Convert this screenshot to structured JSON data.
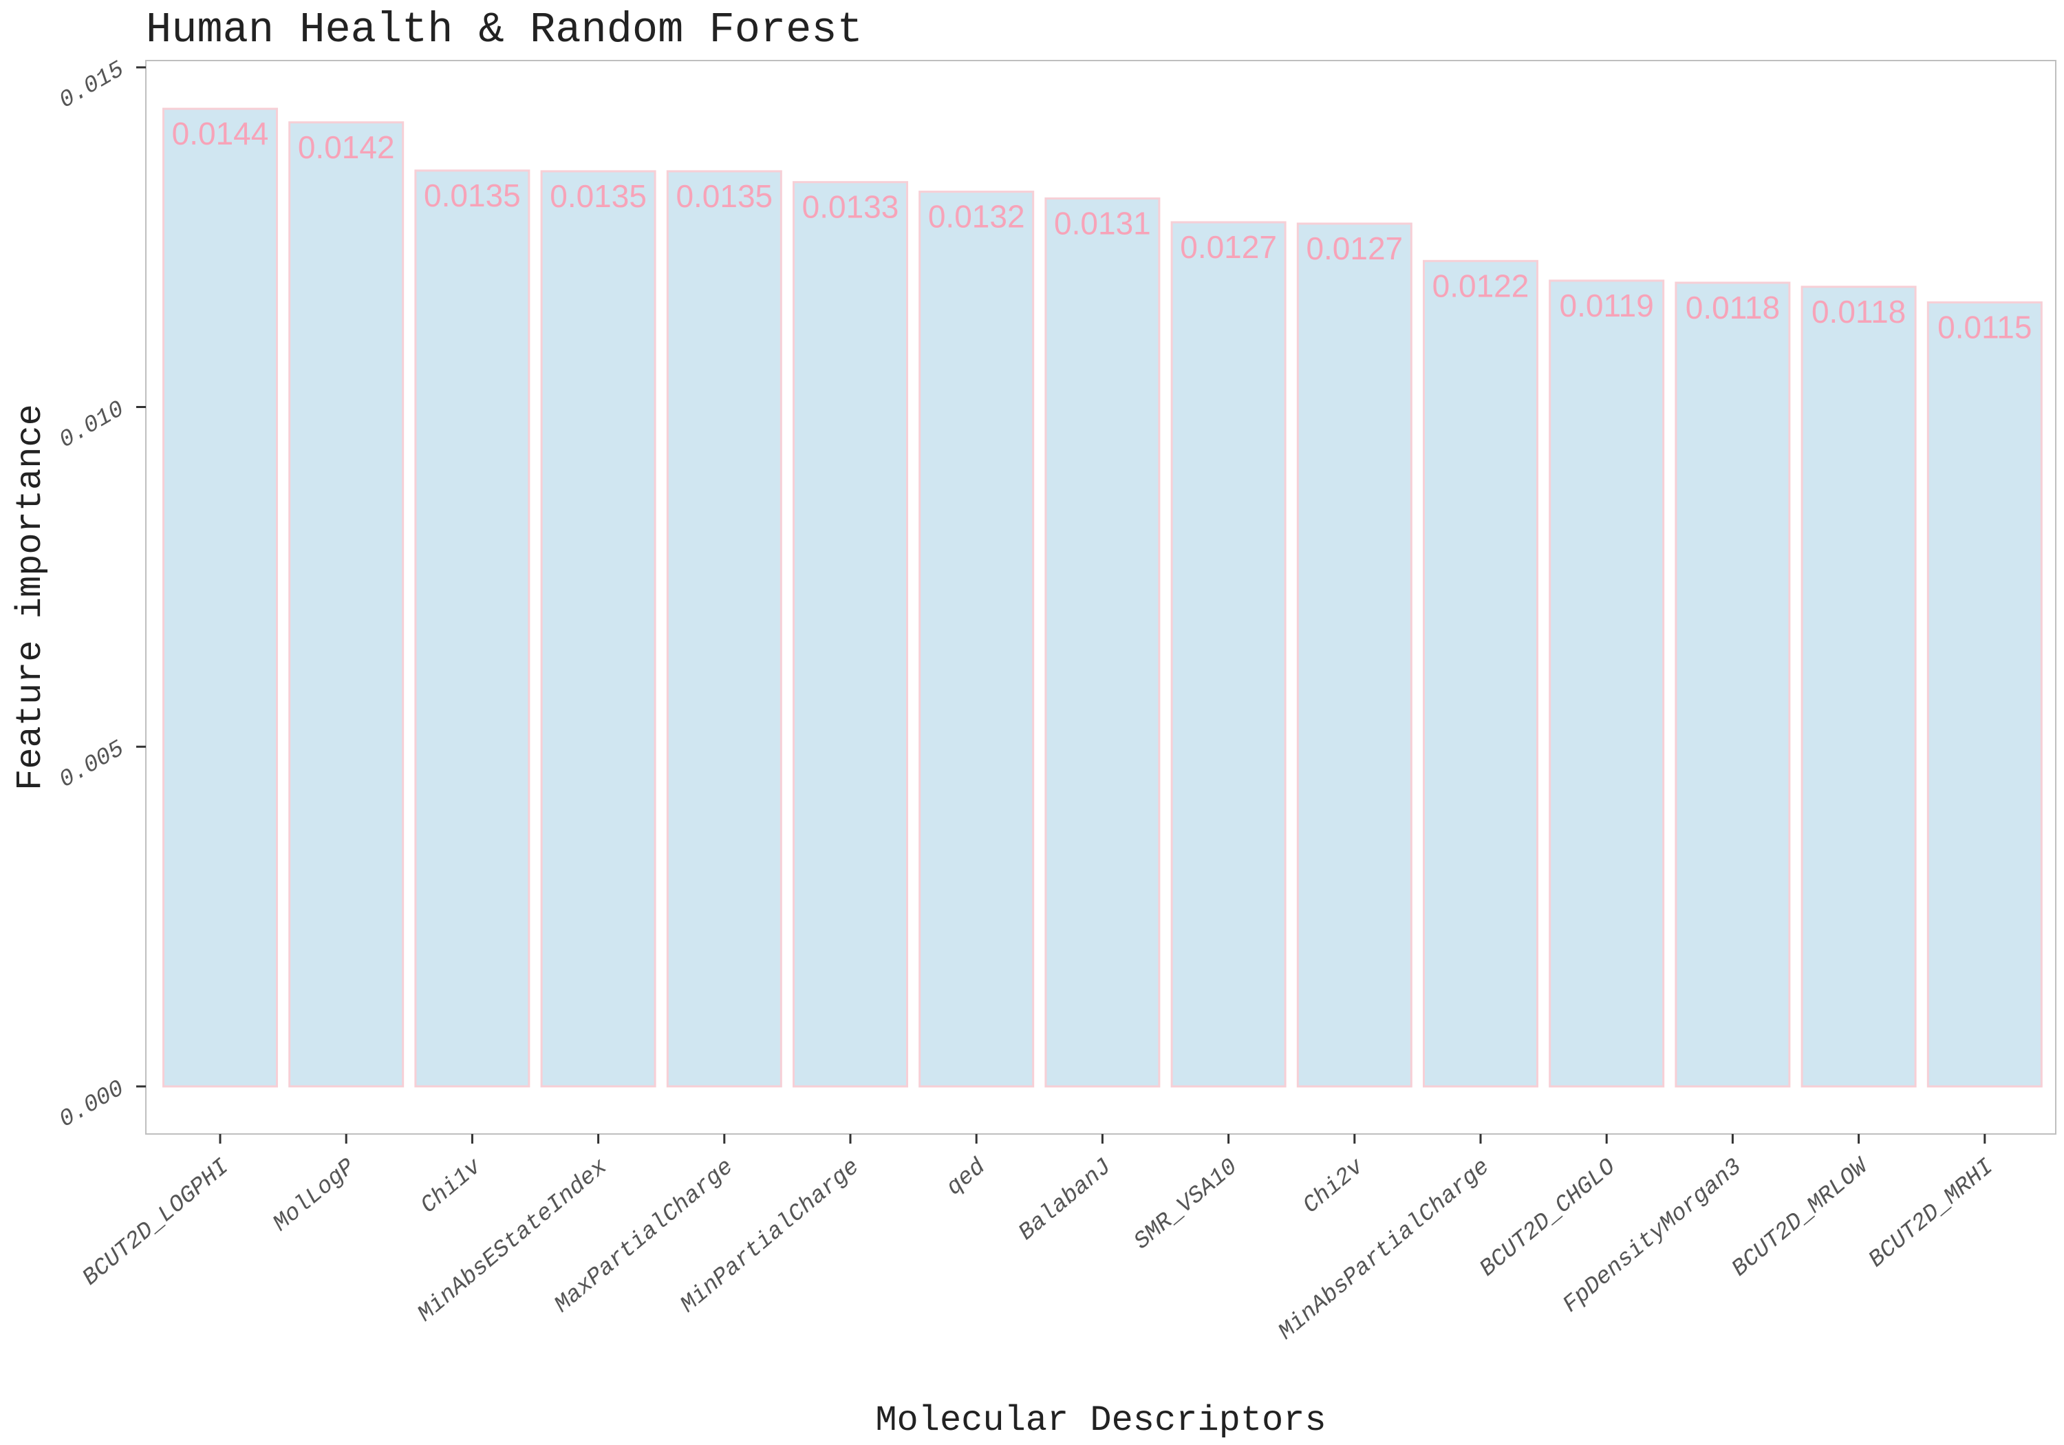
{
  "chart_data": {
    "type": "bar",
    "title": "Human Health & Random Forest",
    "xlabel": "Molecular Descriptors",
    "ylabel": "Feature importance",
    "categories": [
      "BCUT2D_LOGPHI",
      "MolLogP",
      "Chi1v",
      "MinAbsEStateIndex",
      "MaxPartialCharge",
      "MinPartialCharge",
      "qed",
      "BalabanJ",
      "SMR_VSA10",
      "Chi2v",
      "MinAbsPartialCharge",
      "BCUT2D_CHGLO",
      "FpDensityMorgan3",
      "BCUT2D_MRLOW",
      "BCUT2D_MRHI"
    ],
    "values": [
      0.01439,
      0.01419,
      0.01348,
      0.01347,
      0.01347,
      0.01331,
      0.01317,
      0.01307,
      0.01272,
      0.0127,
      0.01215,
      0.01186,
      0.01183,
      0.01177,
      0.01154
    ],
    "value_labels": [
      "0.0144",
      "0.0142",
      "0.0135",
      "0.0135",
      "0.0135",
      "0.0133",
      "0.0132",
      "0.0131",
      "0.0127",
      "0.0127",
      "0.0122",
      "0.0119",
      "0.0118",
      "0.0118",
      "0.0115"
    ],
    "yticks": [
      0,
      0.005,
      0.01,
      0.015
    ],
    "ytick_labels": [
      "0.000",
      "0.005",
      "0.010",
      "0.015"
    ],
    "ylim": [
      -0.0007,
      0.0151
    ],
    "grid": false,
    "legend": "none",
    "colors": {
      "bar_fill": "#d0e6f1",
      "bar_stroke": "#f7cfd6",
      "label_text": "#f7a3b8",
      "panel_border": "#bfbfbf"
    }
  }
}
